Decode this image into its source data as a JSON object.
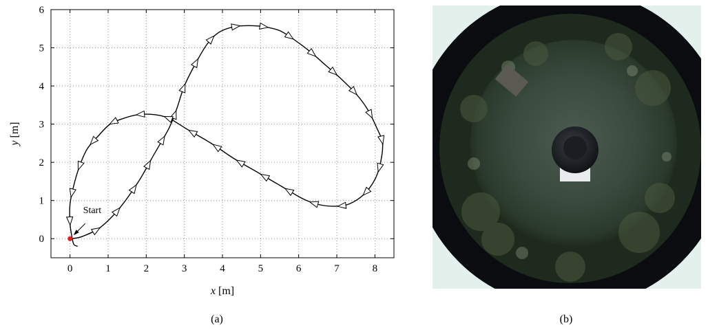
{
  "chart_data": {
    "type": "line",
    "xlabel_var": "x",
    "xlabel_unit": " [m]",
    "ylabel_var": "y",
    "ylabel_unit": " [m]",
    "xlim": [
      -0.5,
      8.5
    ],
    "ylim": [
      -0.5,
      6
    ],
    "xticks": [
      0,
      1,
      2,
      3,
      4,
      5,
      6,
      7,
      8
    ],
    "yticks": [
      0,
      1,
      2,
      3,
      4,
      5,
      6
    ],
    "grid": true,
    "annotation": {
      "text": "Start",
      "x": 0.0,
      "y": 0.0
    },
    "start_marker_color": "#e02020",
    "series": [
      {
        "x": [
          0.0,
          0.3,
          0.8,
          1.3,
          1.8,
          2.2,
          2.6,
          2.8,
          3.0,
          3.3,
          3.6,
          3.9,
          4.3,
          4.7,
          5.1,
          5.5,
          5.9,
          6.3,
          6.7,
          7.1,
          7.5,
          7.8,
          8.05,
          8.2,
          8.15,
          8.0,
          7.7,
          7.3,
          6.9,
          6.5,
          6.1,
          5.5,
          4.9,
          4.3,
          3.7,
          3.1,
          2.6,
          2.2,
          1.8,
          1.4,
          1.05,
          0.75,
          0.45,
          0.25,
          0.1,
          0.0,
          0.0,
          0.05,
          0.1,
          0.2
        ],
        "y": [
          0.0,
          0.05,
          0.3,
          0.8,
          1.5,
          2.2,
          2.9,
          3.4,
          4.0,
          4.6,
          5.1,
          5.4,
          5.55,
          5.58,
          5.55,
          5.45,
          5.2,
          4.9,
          4.55,
          4.2,
          3.8,
          3.4,
          2.9,
          2.5,
          2.0,
          1.55,
          1.15,
          0.9,
          0.85,
          0.9,
          1.05,
          1.4,
          1.75,
          2.1,
          2.5,
          2.85,
          3.15,
          3.25,
          3.25,
          3.15,
          3.0,
          2.7,
          2.35,
          1.9,
          1.4,
          0.9,
          0.4,
          0.05,
          -0.15,
          -0.2
        ]
      }
    ]
  },
  "captions": {
    "a": "(a)",
    "b": "(b)"
  },
  "photo": {
    "ring_color": "#0a0c0f",
    "grass_color": "#3a4a3e",
    "sky_color": "#e4f0ec"
  }
}
